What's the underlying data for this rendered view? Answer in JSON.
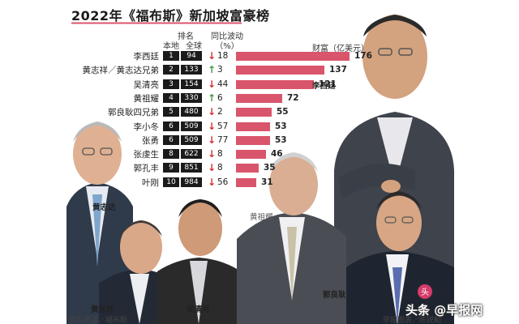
{
  "title": "2022年《福布斯》新加坡富豪榜",
  "headers": {
    "rank_top": "排名",
    "rank_local": "本地",
    "rank_global": "全球",
    "change_top": "同比波动",
    "change_unit": "（%）",
    "wealth": "财富（亿美元）"
  },
  "chart_data": {
    "type": "bar",
    "categories": [
      "李西廷",
      "黄志祥／黄志达兄弟",
      "吴清亮",
      "黄祖耀",
      "郭良耿四兄弟",
      "李小冬",
      "张勇",
      "张虔生",
      "郭孔丰",
      "叶刚"
    ],
    "rank_local": [
      "1",
      "2",
      "3",
      "4",
      "5",
      "6",
      "6",
      "8",
      "9",
      "10"
    ],
    "rank_global": [
      "94",
      "133",
      "154",
      "330",
      "480",
      "509",
      "509",
      "622",
      "851",
      "984"
    ],
    "change_direction": [
      "down",
      "up",
      "down",
      "up",
      "down",
      "down",
      "down",
      "down",
      "down",
      "down"
    ],
    "change_pct": [
      "18",
      "3",
      "44",
      "6",
      "2",
      "57",
      "77",
      "8",
      "8",
      "56"
    ],
    "values": [
      176,
      137,
      121,
      72,
      55,
      53,
      53,
      46,
      35,
      31
    ],
    "value_labels": [
      "176",
      "137",
      "121",
      "72",
      "55",
      "53",
      "53",
      "46",
      "35",
      "31"
    ],
    "xlim": [
      0,
      176
    ],
    "colors": {
      "bar": "#d9556b",
      "up": "#3d9a3d",
      "down": "#d32f2f",
      "rank_box": "#1b1b1b"
    }
  },
  "portraits": {
    "top_right": "李西廷",
    "p1": "黄志达",
    "p2": "黄志祥",
    "p3": "吴清亮",
    "p4": "黄祖耀",
    "p5": "郭良耿"
  },
  "footer": {
    "source": "资料来源／福布斯",
    "credit": "早报图表／陈锐勤"
  },
  "watermark": {
    "text": "头条 @早报网",
    "icon": "toutiao-logo-icon"
  }
}
